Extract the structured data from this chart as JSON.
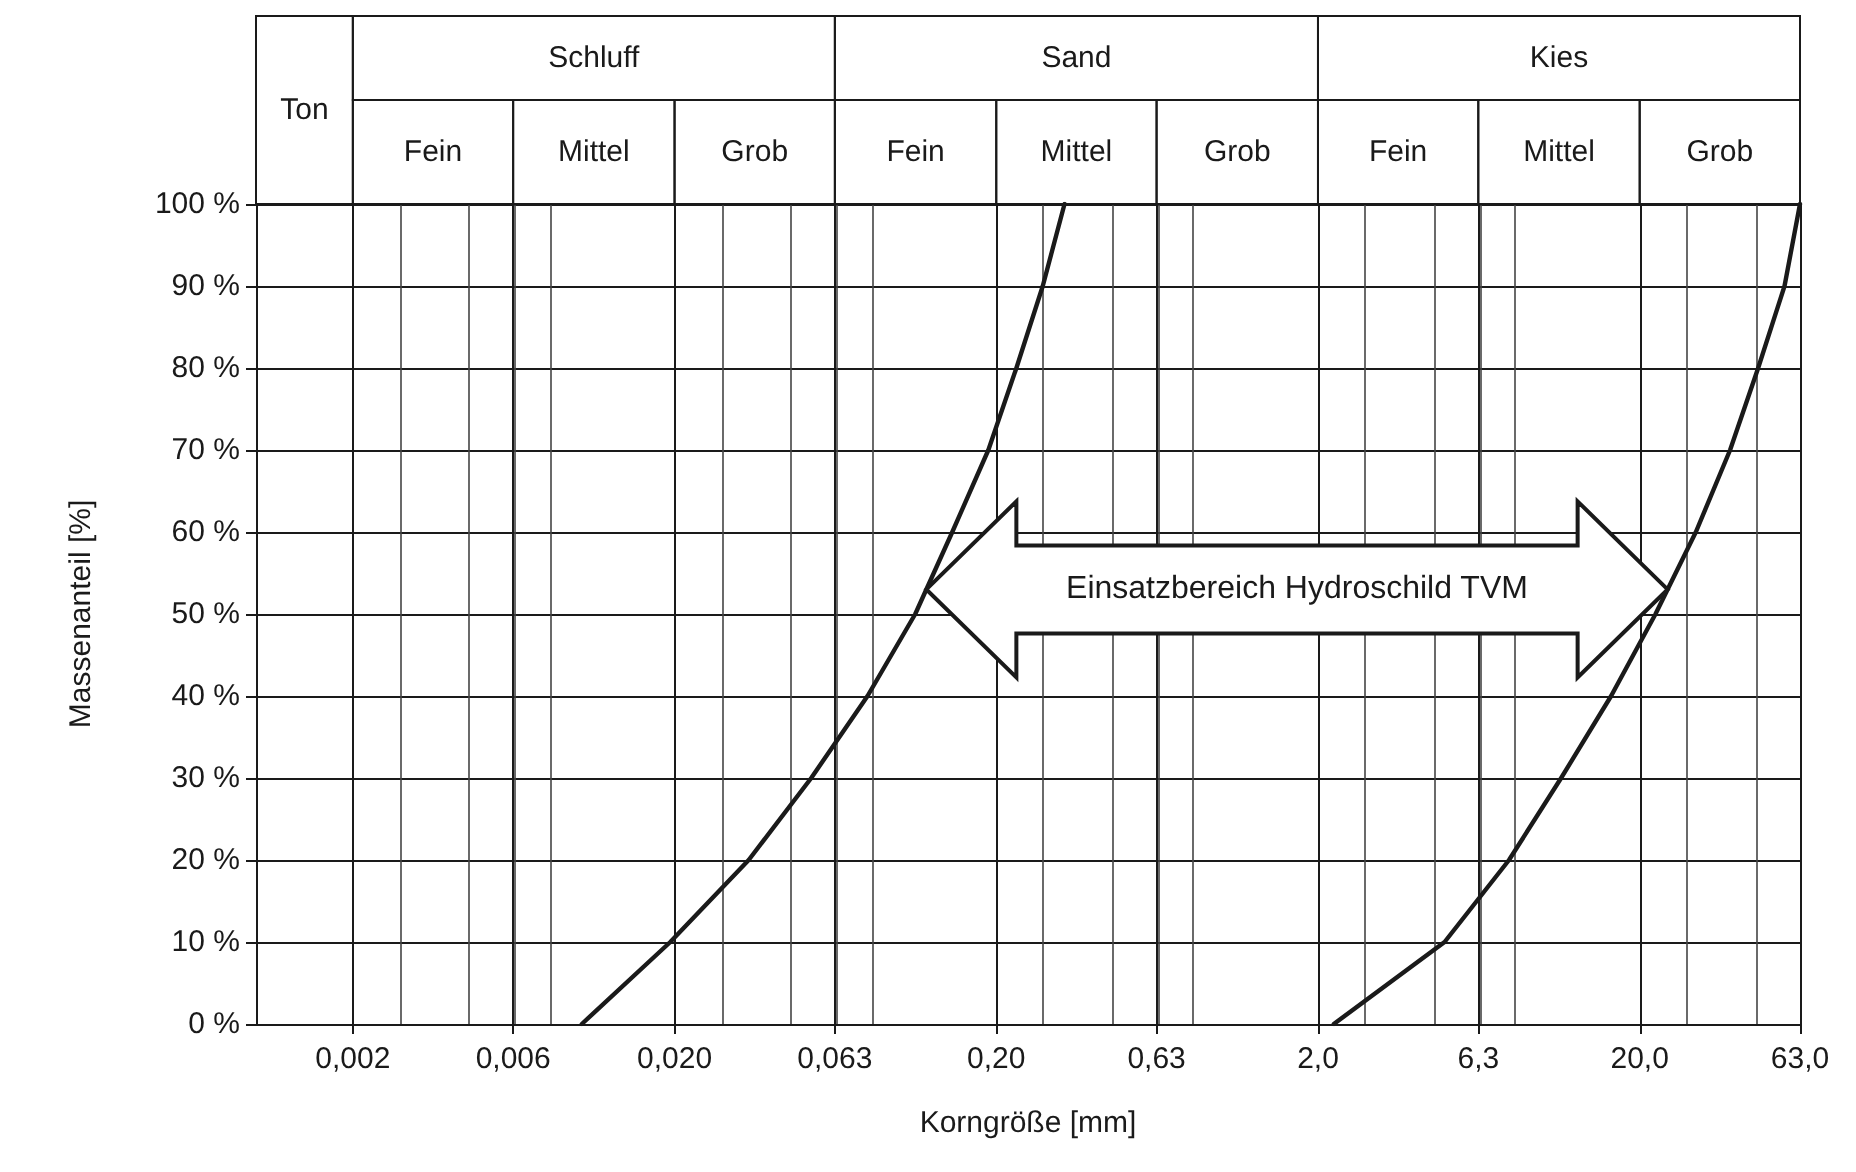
{
  "chart_data": {
    "type": "line",
    "xlabel": "Korngröße [mm]",
    "ylabel": "Massenanteil [%]",
    "log": "x",
    "grid": true,
    "marker": "none",
    "line_style": "solid",
    "xlim": [
      0.001,
      63
    ],
    "ylim": [
      0,
      100
    ],
    "xticks": [
      {
        "value": 0.002,
        "label": "0,002"
      },
      {
        "value": 0.0063,
        "label": "0,006"
      },
      {
        "value": 0.02,
        "label": "0,020"
      },
      {
        "value": 0.063,
        "label": "0,063"
      },
      {
        "value": 0.2,
        "label": "0,20"
      },
      {
        "value": 0.63,
        "label": "0,63"
      },
      {
        "value": 2,
        "label": "2,0"
      },
      {
        "value": 6.3,
        "label": "6,3"
      },
      {
        "value": 20,
        "label": "20,0"
      },
      {
        "value": 63,
        "label": "63,0"
      }
    ],
    "yticks": [
      {
        "value": 0,
        "label": "0 %"
      },
      {
        "value": 10,
        "label": "10 %"
      },
      {
        "value": 20,
        "label": "20 %"
      },
      {
        "value": 30,
        "label": "30 %"
      },
      {
        "value": 40,
        "label": "40 %"
      },
      {
        "value": 50,
        "label": "50 %"
      },
      {
        "value": 60,
        "label": "60 %"
      },
      {
        "value": 70,
        "label": "70 %"
      },
      {
        "value": 80,
        "label": "80 %"
      },
      {
        "value": 90,
        "label": "90 %"
      },
      {
        "value": 100,
        "label": "100 %"
      }
    ],
    "series": [
      {
        "color": "#1a1a1a",
        "x": [
          0.0103,
          0.0194,
          0.034,
          0.0532,
          0.0796,
          0.112,
          0.146,
          0.189,
          0.231,
          0.279,
          0.326
        ],
        "values": [
          0,
          10,
          20,
          30,
          40,
          50,
          60,
          70,
          80,
          90,
          100
        ]
      },
      {
        "color": "#1a1a1a",
        "x": [
          2.24,
          4.95,
          7.85,
          11.4,
          16.3,
          22.4,
          29.9,
          38.2,
          46.7,
          56.4,
          63
        ],
        "values": [
          0,
          10,
          20,
          30,
          40,
          50,
          60,
          70,
          80,
          90,
          100
        ]
      }
    ],
    "annotations": [
      "Ton",
      "Schluff",
      "Sand",
      "Kies",
      "Fein",
      "Mittel",
      "Grob",
      "Fein",
      "Mittel",
      "Grob",
      "Fein",
      "Mittel",
      "Grob",
      "Einsatzbereich Hydroschild TVM"
    ]
  }
}
